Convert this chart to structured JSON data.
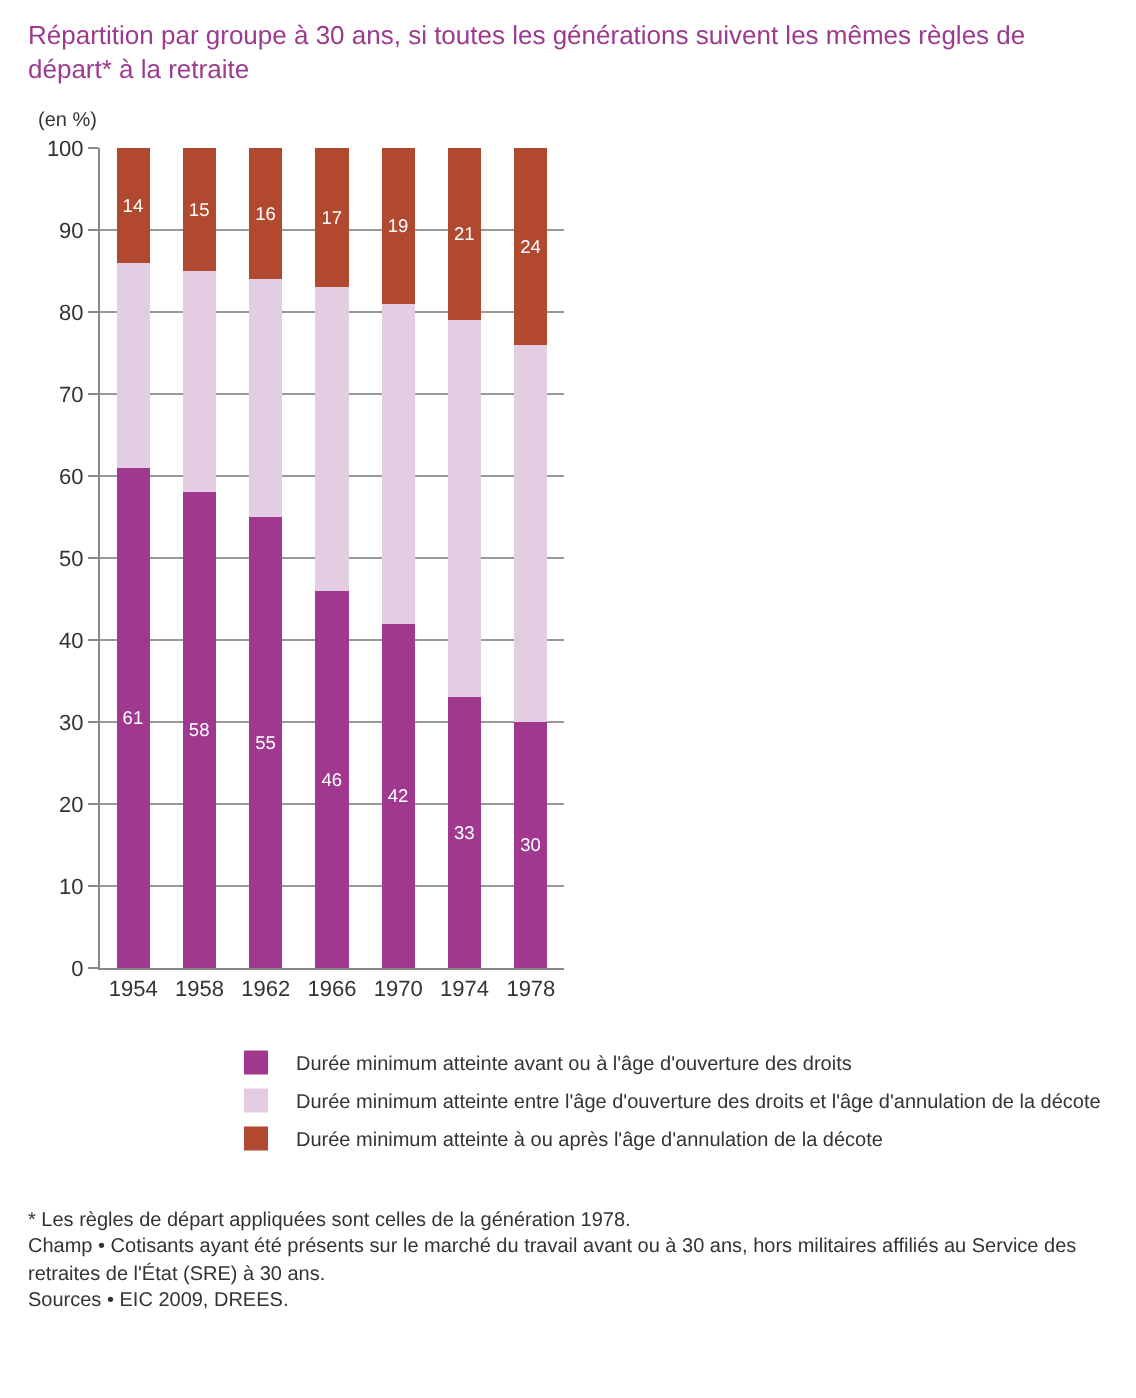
{
  "chart_data": {
    "type": "bar",
    "stacked": true,
    "title": "Répartition par groupe à 30 ans, si toutes les générations suivent les mêmes règles de départ* à la retraite",
    "ylabel": "(en %)",
    "categories": [
      "1954",
      "1958",
      "1962",
      "1966",
      "1970",
      "1974",
      "1978"
    ],
    "series": [
      {
        "name": "Durée minimum atteinte avant ou à l'âge d'ouverture des droits",
        "color": "#a0388f",
        "values": [
          61,
          58,
          55,
          46,
          42,
          33,
          30
        ],
        "value_labels": [
          "61",
          "58",
          "55",
          "46",
          "42",
          "33",
          "30"
        ]
      },
      {
        "name": "Durée minimum atteinte entre l'âge d'ouverture des droits et l'âge d'annulation de la décote",
        "color": "#e3cde3",
        "values": [
          25,
          27,
          29,
          37,
          39,
          46,
          46
        ]
      },
      {
        "name": "Durée minimum atteinte à ou après l'âge d'annulation de la décote",
        "color": "#b0492f",
        "values": [
          14,
          15,
          16,
          17,
          19,
          21,
          24
        ],
        "value_labels": [
          "14",
          "15",
          "16",
          "17",
          "19",
          "21",
          "24"
        ]
      }
    ],
    "ylim": [
      0,
      100
    ],
    "yticks": [
      0,
      10,
      20,
      30,
      40,
      50,
      60,
      70,
      80,
      90,
      100
    ],
    "grid": "y",
    "legend": "bottom",
    "annotations": [
      "* Les règles de départ appliquées sont celles de la génération 1978.",
      "Champ • Cotisants ayant été présents sur le marché du travail avant ou à 30 ans, hors militaires affiliés au Service des retraites de l'État (SRE) à 30 ans.",
      "Sources • EIC 2009, DREES."
    ]
  }
}
